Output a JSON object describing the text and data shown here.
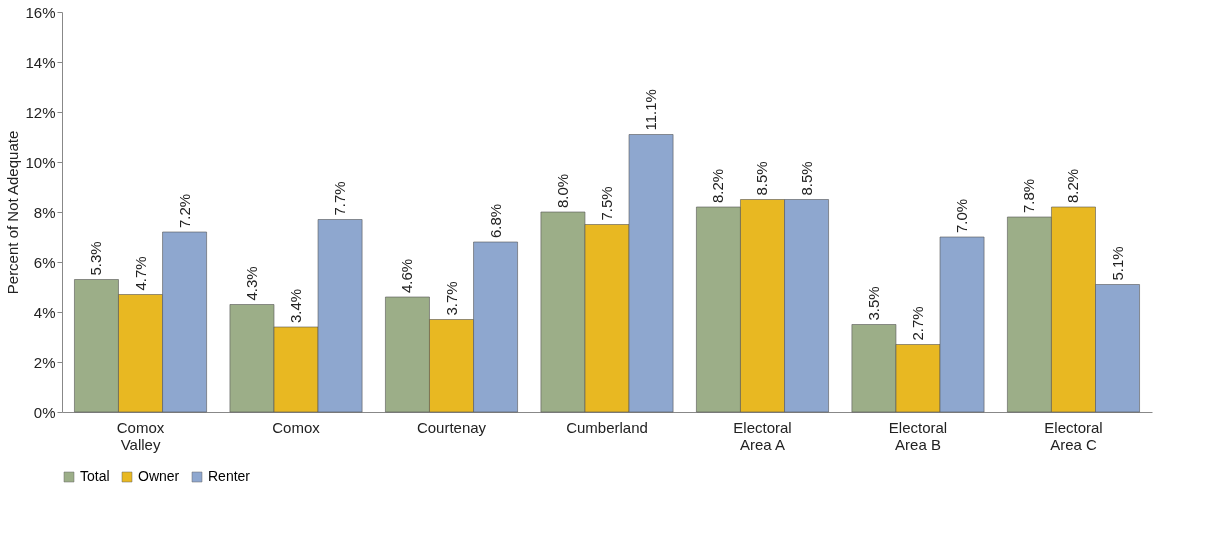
{
  "chart_data": {
    "type": "bar",
    "ylabel": "Percent of Not Adequate",
    "categories": [
      "Comox\nValley",
      "Comox",
      "Courtenay",
      "Cumberland",
      "Electoral\nArea A",
      "Electoral\nArea B",
      "Electoral\nArea C"
    ],
    "series": [
      {
        "name": "Total",
        "color": "#9cae88",
        "values": [
          5.3,
          4.3,
          4.6,
          8.0,
          8.2,
          3.5,
          7.8
        ],
        "value_labels": [
          "5.3%",
          "4.3%",
          "4.6%",
          "8.0%",
          "8.2%",
          "3.5%",
          "7.8%"
        ]
      },
      {
        "name": "Owner",
        "color": "#e8b822",
        "values": [
          4.7,
          3.4,
          3.7,
          7.5,
          8.5,
          2.7,
          8.2
        ],
        "value_labels": [
          "4.7%",
          "3.4%",
          "3.7%",
          "7.5%",
          "8.5%",
          "2.7%",
          "8.2%"
        ]
      },
      {
        "name": "Renter",
        "color": "#8ea7cf",
        "values": [
          7.2,
          7.7,
          6.8,
          11.1,
          8.5,
          7.0,
          5.1
        ],
        "value_labels": [
          "7.2%",
          "7.7%",
          "6.8%",
          "11.1%",
          "8.5%",
          "7.0%",
          "5.1%"
        ]
      }
    ],
    "ylim": [
      0,
      16
    ],
    "yticks": [
      {
        "value": 0,
        "label": "0%"
      },
      {
        "value": 2,
        "label": "2%"
      },
      {
        "value": 4,
        "label": "4%"
      },
      {
        "value": 6,
        "label": "6%"
      },
      {
        "value": 8,
        "label": "8%"
      },
      {
        "value": 10,
        "label": "10%"
      },
      {
        "value": 12,
        "label": "12%"
      },
      {
        "value": 14,
        "label": "14%"
      },
      {
        "value": 16,
        "label": "16%"
      }
    ],
    "grid": false,
    "legend": "bottom"
  }
}
